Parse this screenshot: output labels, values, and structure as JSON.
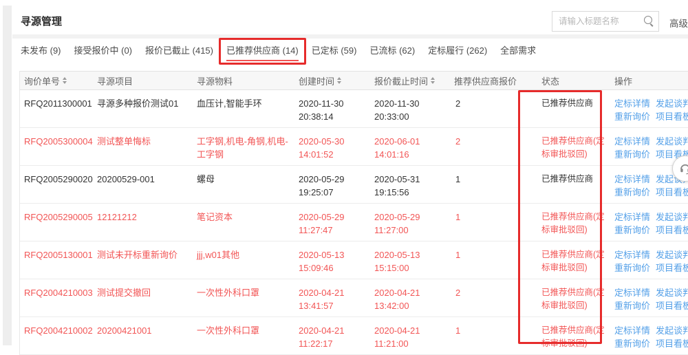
{
  "page": {
    "title": "寻源管理"
  },
  "search": {
    "placeholder": "请输入标题名称",
    "advanced_label": "高级"
  },
  "colors": {
    "text_red": "#f25555",
    "link_blue": "#54a0e8",
    "annotation_red": "#e62b2b",
    "active_tab_underline": "#f15353"
  },
  "icons": {
    "search-icon": "magnifier",
    "sort-icon": "up-down-carets",
    "help-floating-button": "headset"
  },
  "tabs": [
    {
      "label": "未发布 (9)",
      "active": false,
      "boxed": false
    },
    {
      "label": "接受报价中 (0)",
      "active": false,
      "boxed": false
    },
    {
      "label": "报价已截止 (415)",
      "active": false,
      "boxed": false
    },
    {
      "label": "已推荐供应商 (14)",
      "active": true,
      "boxed": true
    },
    {
      "label": "已定标 (59)",
      "active": false,
      "boxed": false
    },
    {
      "label": "已流标 (62)",
      "active": false,
      "boxed": false
    },
    {
      "label": "定标履行 (262)",
      "active": false,
      "boxed": false
    },
    {
      "label": "全部需求",
      "active": false,
      "boxed": false
    }
  ],
  "table": {
    "columns": [
      {
        "label": "询价单号",
        "sortable": true
      },
      {
        "label": "寻源项目",
        "sortable": false
      },
      {
        "label": "寻源物料",
        "sortable": false
      },
      {
        "label": "创建时间",
        "sortable": true
      },
      {
        "label": "报价截止时间",
        "sortable": true
      },
      {
        "label": "推荐供应商报价",
        "sortable": false
      },
      {
        "label": "状态",
        "sortable": false
      },
      {
        "label": "操作",
        "sortable": false
      }
    ],
    "actions": [
      "定标详情",
      "发起谈判",
      "重新询价",
      "项目看板"
    ],
    "rows": [
      {
        "rfq_no": "RFQ2011300001",
        "project": "寻源多种报价测试01",
        "material": "血压计,智能手环",
        "created_date": "2020-11-30",
        "created_time": "20:38:14",
        "deadline_date": "2020-11-30",
        "deadline_time": "20:33:00",
        "quotes": "2",
        "status": "已推荐供应商",
        "highlight": false
      },
      {
        "rfq_no": "RFQ2005300004",
        "project": "测试整单悔标",
        "material": "工字钢,机电-角钢,机电-工字钢",
        "created_date": "2020-05-30",
        "created_time": "14:01:52",
        "deadline_date": "2020-06-01",
        "deadline_time": "14:01:16",
        "quotes": "2",
        "status": "已推荐供应商(定标审批驳回)",
        "highlight": true
      },
      {
        "rfq_no": "RFQ2005290020",
        "project": "20200529-001",
        "material": "螺母",
        "created_date": "2020-05-29",
        "created_time": "19:25:07",
        "deadline_date": "2020-05-31",
        "deadline_time": "19:15:56",
        "quotes": "1",
        "status": "已推荐供应商",
        "highlight": false
      },
      {
        "rfq_no": "RFQ2005290005",
        "project": "12121212",
        "material": "笔记资本",
        "created_date": "2020-05-29",
        "created_time": "11:27:47",
        "deadline_date": "2020-05-29",
        "deadline_time": "11:27:00",
        "quotes": "1",
        "status": "已推荐供应商(定标审批驳回)",
        "highlight": true
      },
      {
        "rfq_no": "RFQ2005130001",
        "project": "测试未开标重新询价",
        "material": "jjj,w01其他",
        "created_date": "2020-05-13",
        "created_time": "15:09:46",
        "deadline_date": "2020-05-13",
        "deadline_time": "15:15:00",
        "quotes": "1",
        "status": "已推荐供应商(定标审批驳回)",
        "highlight": true
      },
      {
        "rfq_no": "RFQ2004210003",
        "project": "测试提交撤回",
        "material": "一次性外科口罩",
        "created_date": "2020-04-21",
        "created_time": "13:41:57",
        "deadline_date": "2020-04-21",
        "deadline_time": "13:42:00",
        "quotes": "2",
        "status": "已推荐供应商(定标审批驳回)",
        "highlight": true
      },
      {
        "rfq_no": "RFQ2004210002",
        "project": "20200421001",
        "material": "一次性外科口罩",
        "created_date": "2020-04-21",
        "created_time": "11:22:17",
        "deadline_date": "2020-04-21",
        "deadline_time": "11:21:00",
        "quotes": "1",
        "status": "已推荐供应商(定标审批驳回)",
        "highlight": true
      }
    ]
  }
}
